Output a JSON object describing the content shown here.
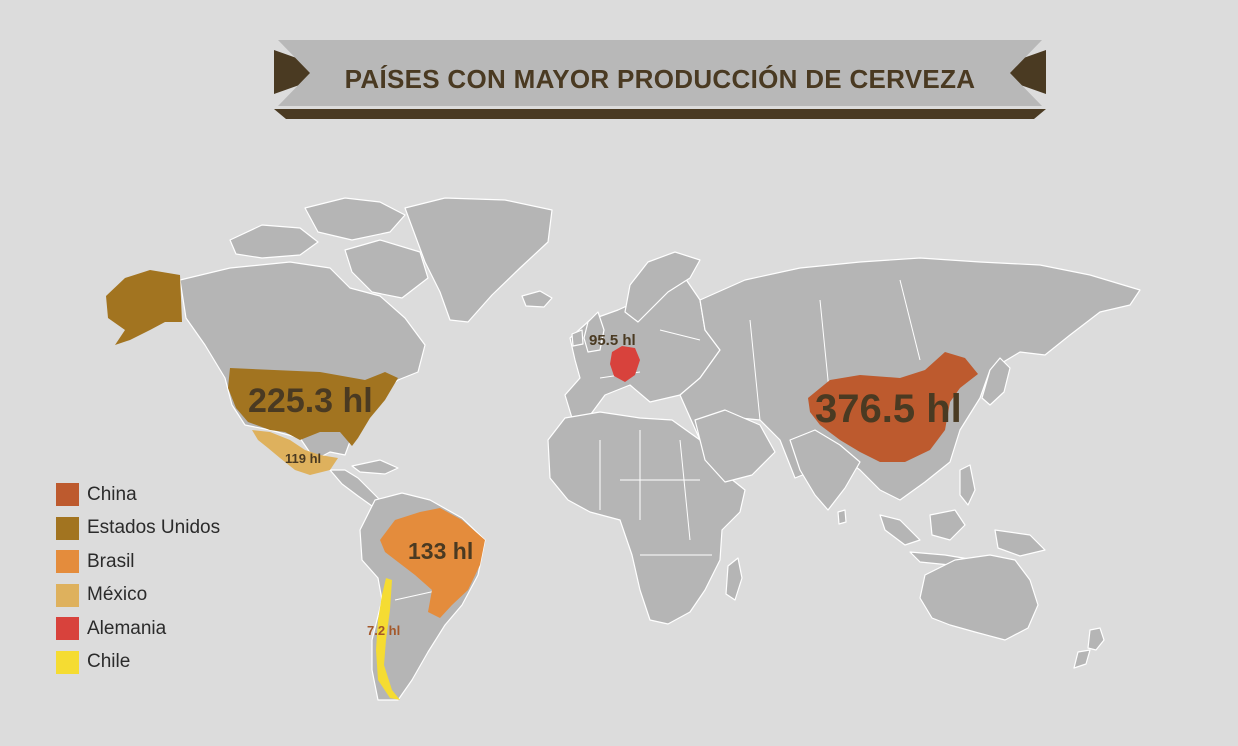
{
  "title": "PAÍSES CON MAYOR PRODUCCIÓN DE CERVEZA",
  "colors": {
    "background": "#dcdcdc",
    "land": "#b5b5b5",
    "banner": "#b8b8b8",
    "banner_dark": "#4a3a22",
    "label_dark": "#4a3a22"
  },
  "countries": [
    {
      "id": "china",
      "name": "China",
      "production": "376.5 hl",
      "color": "#bd5a2e"
    },
    {
      "id": "usa",
      "name": "Estados Unidos",
      "production": "225.3 hl",
      "color": "#a27420"
    },
    {
      "id": "brazil",
      "name": "Brasil",
      "production": "133 hl",
      "color": "#e48c3c"
    },
    {
      "id": "mexico",
      "name": "México",
      "production": "119 hl",
      "color": "#deb15d"
    },
    {
      "id": "germany",
      "name": "Alemania",
      "production": "95.5 hl",
      "color": "#d8423c"
    },
    {
      "id": "chile",
      "name": "Chile",
      "production": "7.2 hl",
      "color": "#f5dc32"
    }
  ]
}
